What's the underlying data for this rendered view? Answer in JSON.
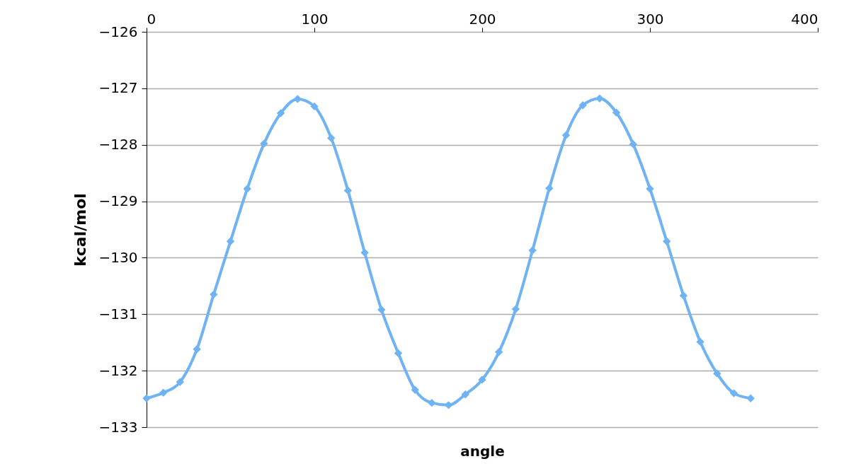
{
  "chart_data": {
    "type": "line",
    "xlabel": "angle",
    "ylabel": "kcal/mol",
    "x": [
      0,
      10,
      20,
      30,
      40,
      50,
      60,
      70,
      80,
      90,
      100,
      110,
      120,
      130,
      140,
      150,
      160,
      170,
      180,
      190,
      200,
      210,
      220,
      230,
      240,
      250,
      260,
      270,
      280,
      290,
      300,
      310,
      320,
      330,
      340,
      350,
      360
    ],
    "series": [
      {
        "color": "#6fb3f5",
        "values": [
          -132.49,
          -132.39,
          -132.2,
          -131.62,
          -130.65,
          -129.71,
          -128.78,
          -127.98,
          -127.44,
          -127.19,
          -127.32,
          -127.88,
          -128.81,
          -129.91,
          -130.92,
          -131.69,
          -132.34,
          -132.57,
          -132.61,
          -132.42,
          -132.16,
          -131.67,
          -130.91,
          -129.87,
          -128.77,
          -127.83,
          -127.3,
          -127.18,
          -127.43,
          -127.99,
          -128.78,
          -129.71,
          -130.67,
          -131.49,
          -132.05,
          -132.4,
          -132.49
        ]
      }
    ],
    "xlim": [
      0,
      400
    ],
    "xticks": [
      0,
      100,
      200,
      300,
      400
    ],
    "ylim": [
      -133,
      -126
    ],
    "yticks": [
      -133,
      -132,
      -131,
      -130,
      -129,
      -128,
      -127,
      -126
    ],
    "grid": "y",
    "marker": "diamond",
    "line_style": "solid"
  }
}
